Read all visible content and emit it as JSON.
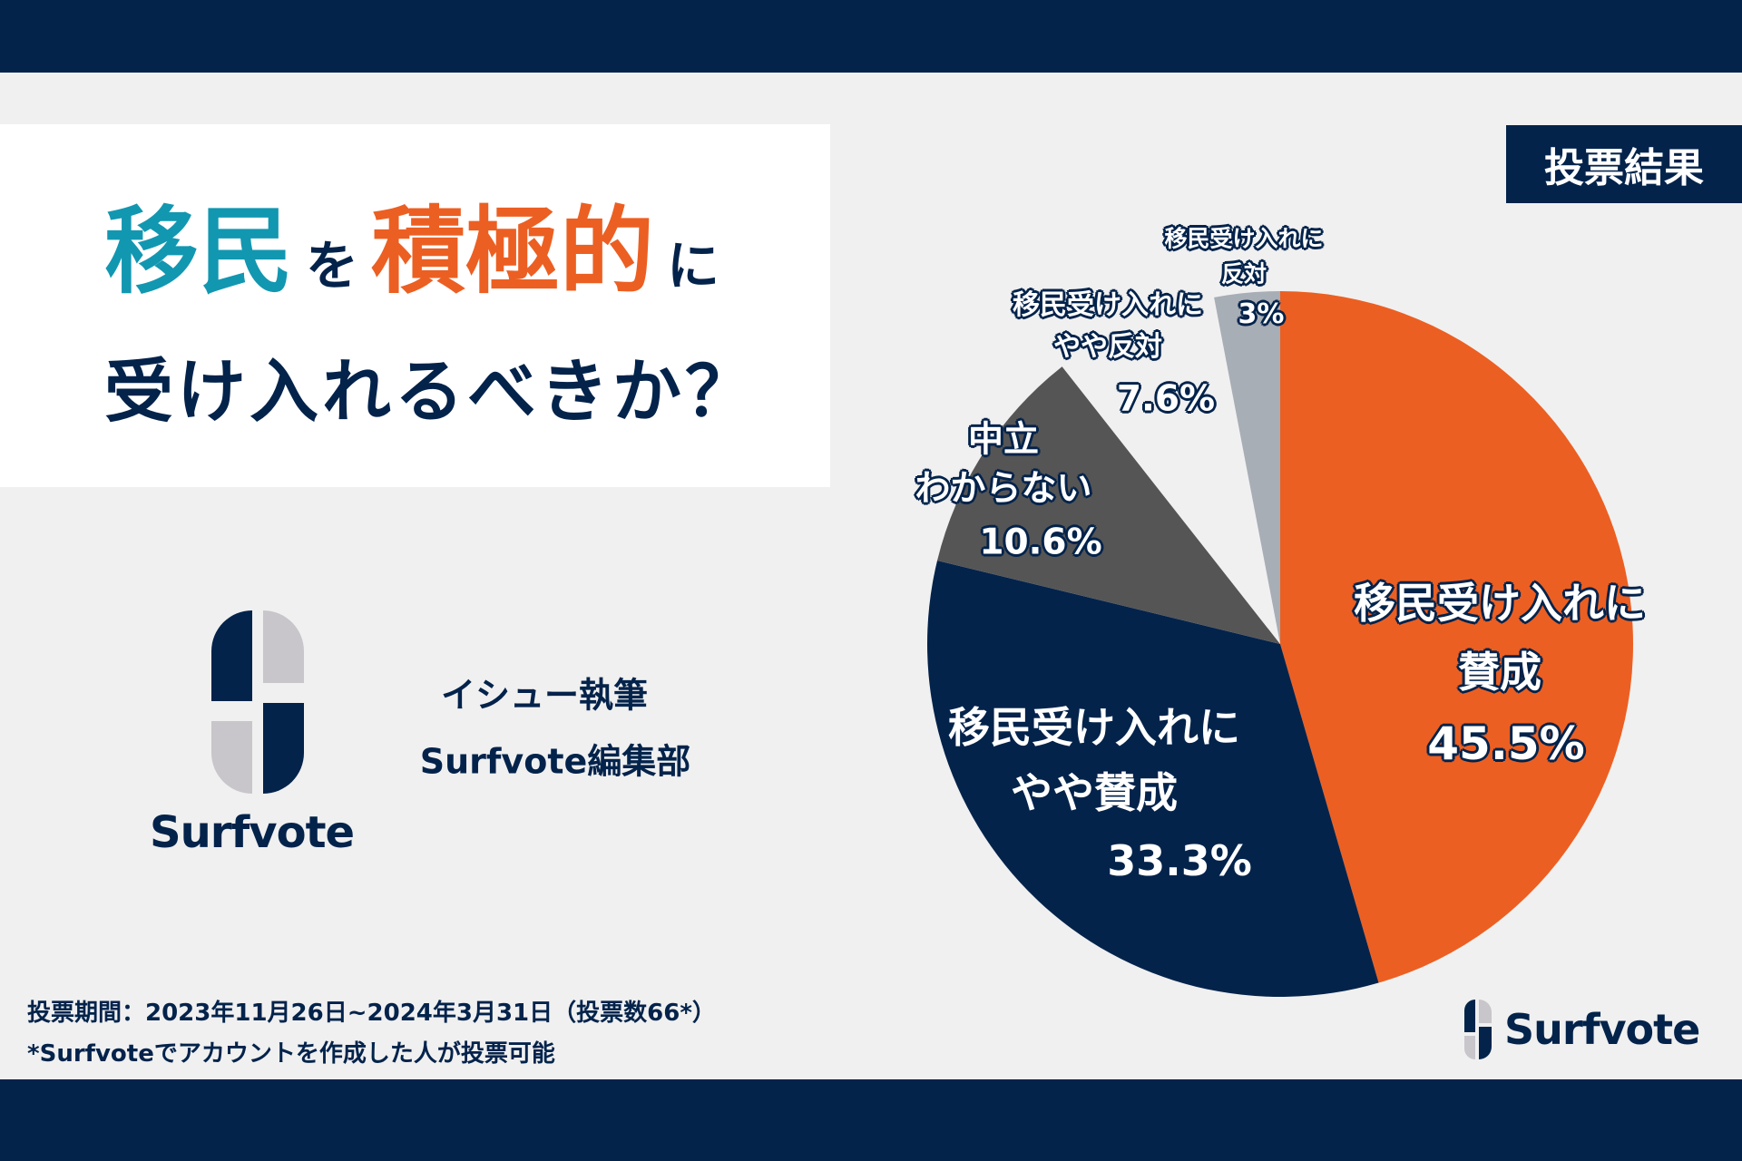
{
  "title": {
    "line1": [
      {
        "text": "移民",
        "color": "#1297b1",
        "size": "big"
      },
      {
        "text": "を",
        "color": "#03234b",
        "size": "small"
      },
      {
        "text": "積極的",
        "color": "#ec5f22",
        "size": "big"
      },
      {
        "text": "に",
        "color": "#03234b",
        "size": "small"
      }
    ],
    "line2": "受け入れるべきか？"
  },
  "badge": "投票結果",
  "logo": {
    "wordmark": "Surfvote"
  },
  "author": {
    "line1": "イシュー執筆",
    "line2": "Surfvote編集部"
  },
  "footer": {
    "line1": "投票期間：2023年11月26日~2024年3月31日（投票数66*）",
    "line2": "*Surfvoteでアカウントを作成した人が投票可能"
  },
  "colors": {
    "navy": "#03234b",
    "orange": "#ec5f22",
    "teal": "#1297b1",
    "dark_gray": "#555555",
    "light_gray": "#a8aeb6",
    "background": "#f0f0f0"
  },
  "chart_data": {
    "type": "pie",
    "start": "12 o'clock, clockwise",
    "slices": [
      {
        "label": [
          "移民受け入れに",
          "賛成"
        ],
        "value": 45.5,
        "value_label": "45.5%",
        "color": "#ec5f22"
      },
      {
        "label": [
          "移民受け入れに",
          "やや賛成"
        ],
        "value": 33.3,
        "value_label": "33.3%",
        "color": "#03234b"
      },
      {
        "label": [
          "中立",
          "わからない"
        ],
        "value": 10.6,
        "value_label": "10.6%",
        "color": "#555555"
      },
      {
        "label": [
          "移民受け入れに",
          "やや反対"
        ],
        "value": 7.6,
        "value_label": "7.6%",
        "color": "#f0f0f0"
      },
      {
        "label": [
          "移民受け入れに",
          "反対"
        ],
        "value": 3,
        "value_label": "3%",
        "color": "#a8aeb6"
      }
    ]
  }
}
